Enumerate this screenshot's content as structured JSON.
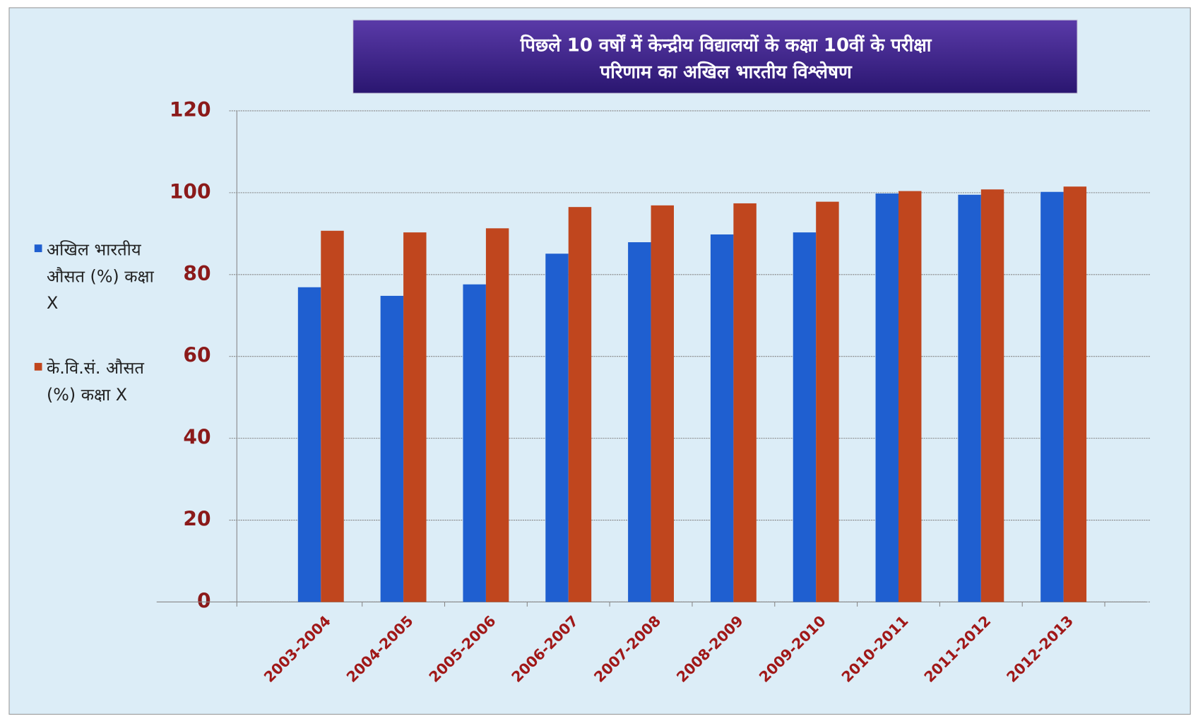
{
  "chart_data": {
    "type": "bar",
    "title": [
      "पिछले 10 वर्षों में केन्द्रीय विद्यालयों के कक्षा 10वीं के परीक्षा",
      "परिणाम का अखिल भारतीय विश्लेषण"
    ],
    "categories": [
      "2003-2004",
      "2004-2005",
      "2005-2006",
      "2006-2007",
      "2007-2008",
      "2008-2009",
      "2009-2010",
      "2010-2011",
      "2011-2012",
      "2012-2013"
    ],
    "series": [
      {
        "name": "अखिल भारतीय औसत (%) कक्षा X",
        "color": "#1f5fd0",
        "values": [
          76.9,
          74.8,
          77.6,
          85.1,
          87.9,
          89.8,
          90.3,
          99.8,
          99.5,
          100.2
        ]
      },
      {
        "name": "के.वि.सं. औसत (%) कक्षा X",
        "color": "#c0461e",
        "values": [
          90.7,
          90.3,
          91.3,
          96.5,
          96.9,
          97.4,
          97.8,
          100.4,
          100.8,
          101.5
        ]
      }
    ],
    "ylim": [
      0,
      120
    ],
    "yticks": [
      0,
      20,
      40,
      60,
      80,
      100,
      120
    ],
    "grid": true,
    "legend": "left"
  }
}
